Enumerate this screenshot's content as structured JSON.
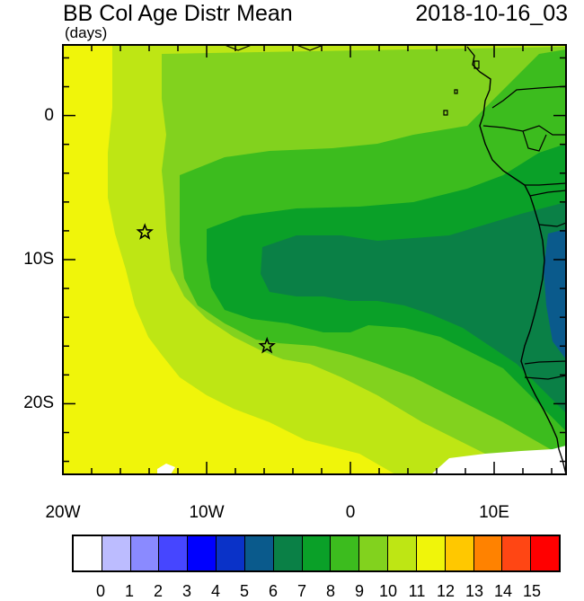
{
  "header": {
    "title": "BB Col Age Distr Mean",
    "units": "(days)",
    "datetime": "2018-10-16_03"
  },
  "axes": {
    "lon_labels": [
      "20W",
      "10W",
      "0",
      "10E"
    ],
    "lat_labels": [
      "0",
      "10S",
      "20S"
    ]
  },
  "colorbar": {
    "labels": [
      "0",
      "1",
      "2",
      "3",
      "4",
      "5",
      "6",
      "7",
      "8",
      "9",
      "10",
      "11",
      "12",
      "13",
      "14",
      "15"
    ],
    "colors": [
      "#ffffff",
      "#bcbcff",
      "#8a8aff",
      "#4646ff",
      "#0000ff",
      "#0a32c8",
      "#0a5a8c",
      "#0a8046",
      "#0aa028",
      "#3cbc1e",
      "#82d21e",
      "#bee614",
      "#f0f50a",
      "#ffc800",
      "#ff8200",
      "#ff4614",
      "#ff0000"
    ]
  },
  "field_colors": {
    "white": "#ffffff",
    "c6": "#0a5a8c",
    "c7": "#0a8046",
    "c8": "#0aa028",
    "c9": "#3cbc1e",
    "c10": "#82d21e",
    "c11": "#bee614",
    "c12": "#f0f50a"
  },
  "markers": [
    {
      "name": "star-1",
      "lon": -14.3,
      "lat": -8.1
    },
    {
      "name": "star-2",
      "lon": -5.8,
      "lat": -16.0
    }
  ]
}
